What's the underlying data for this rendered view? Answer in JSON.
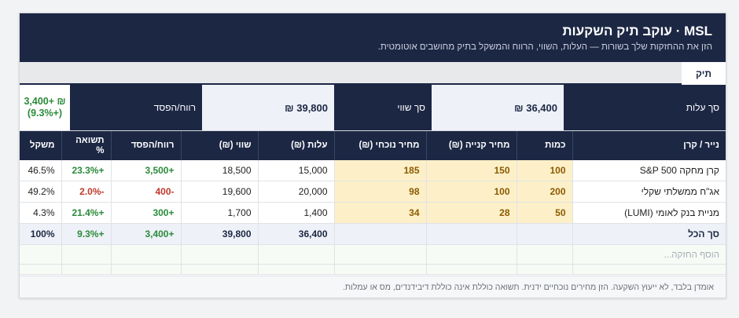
{
  "header": {
    "title": "MSL · עוקב תיק השקעות",
    "subtitle": "הזן את ההחזקות שלך בשורות — העלות, השווי, הרווח והמשקל בתיק מחושבים אוטומטית."
  },
  "tabs": [
    {
      "label": "תיק"
    }
  ],
  "summary": {
    "cost_label": "סך עלות",
    "cost_value": "36,400 ₪",
    "value_label": "סך שווי",
    "value_value": "39,800 ₪",
    "pl_label": "רווח/הפסד",
    "pl_value": "3,400+ ₪\n(9.3%+)"
  },
  "table": {
    "columns": [
      "נייר / קרן",
      "כמות",
      "מחיר קנייה (₪)",
      "מחיר נוכחי (₪)",
      "עלות (₪)",
      "שווי (₪)",
      "רווח/הפסד",
      "תשואה %",
      "משקל"
    ],
    "rows": [
      [
        "קרן מחקה S&P 500",
        "100",
        "150",
        "185",
        "15,000",
        "18,500",
        "+3,500",
        "+23.3%",
        "46.5%"
      ],
      [
        "אג\"ח ממשלתי שקלי",
        "200",
        "100",
        "98",
        "20,000",
        "19,600",
        "-400",
        "-2.0%",
        "49.2%"
      ],
      [
        "מניית בנק לאומי (LUMI)",
        "50",
        "28",
        "34",
        "1,400",
        "1,700",
        "+300",
        "+21.4%",
        "4.3%"
      ]
    ],
    "total": [
      "סך הכל",
      "",
      "",
      "",
      "36,400",
      "39,800",
      "+3,400",
      "+9.3%",
      "100%"
    ],
    "add_placeholder": "הוסף החזקה..."
  },
  "footer": {
    "note": "אומדן בלבד, לא ייעוץ השקעה. הזן מחירים נוכחיים ידנית. תשואה כוללת אינה כוללת דיבידנדים, מס או עמלות."
  },
  "colors": {
    "navy": "#1c2744",
    "positive": "#2a8a3a",
    "negative": "#c0392b",
    "input_cell": "#fdf0c8"
  }
}
